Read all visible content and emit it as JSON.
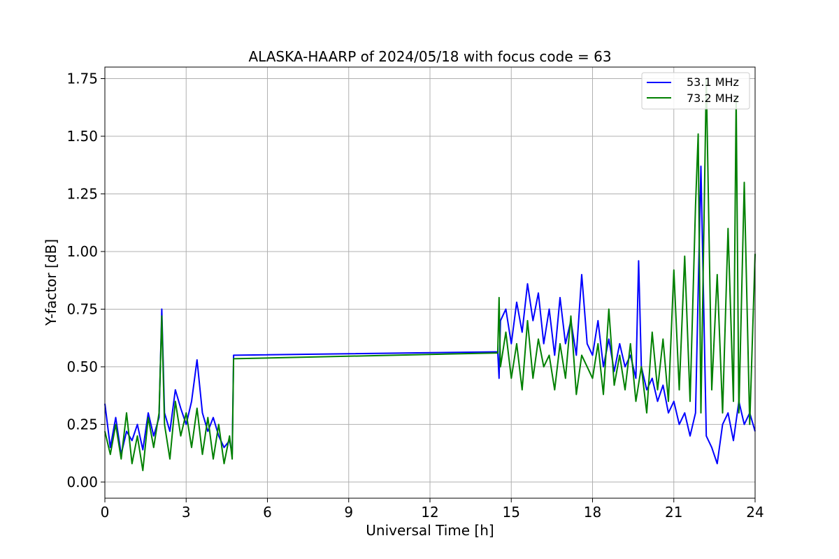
{
  "chart_data": {
    "type": "line",
    "title": "ALASKA-HAARP of 2024/05/18 with focus code = 63",
    "xlabel": "Universal Time [h]",
    "ylabel": "Y-factor [dB]",
    "xlim": [
      0,
      24
    ],
    "ylim": [
      -0.07,
      1.8
    ],
    "xticks": [
      0,
      3,
      6,
      9,
      12,
      15,
      18,
      21,
      24
    ],
    "xtick_labels": [
      "0",
      "3",
      "6",
      "9",
      "12",
      "15",
      "18",
      "21",
      "24"
    ],
    "yticks": [
      0.0,
      0.25,
      0.5,
      0.75,
      1.0,
      1.25,
      1.5,
      1.75
    ],
    "ytick_labels": [
      "0.00",
      "0.25",
      "0.50",
      "0.75",
      "1.00",
      "1.25",
      "1.50",
      "1.75"
    ],
    "grid": true,
    "legend_position": "top-right",
    "series": [
      {
        "name": "53.1 MHz",
        "color": "#0000ff",
        "x": [
          0.0,
          0.2,
          0.4,
          0.6,
          0.8,
          1.0,
          1.2,
          1.4,
          1.6,
          1.8,
          2.0,
          2.1,
          2.2,
          2.4,
          2.6,
          2.8,
          3.0,
          3.2,
          3.4,
          3.6,
          3.8,
          4.0,
          4.2,
          4.4,
          4.6,
          4.7,
          4.75,
          14.5,
          14.55,
          14.6,
          14.8,
          15.0,
          15.2,
          15.4,
          15.6,
          15.8,
          16.0,
          16.2,
          16.4,
          16.6,
          16.8,
          17.0,
          17.2,
          17.4,
          17.6,
          17.8,
          18.0,
          18.2,
          18.4,
          18.6,
          18.8,
          19.0,
          19.2,
          19.4,
          19.6,
          19.7,
          19.8,
          20.0,
          20.2,
          20.4,
          20.6,
          20.8,
          21.0,
          21.2,
          21.4,
          21.6,
          21.8,
          22.0,
          22.2,
          22.4,
          22.6,
          22.8,
          23.0,
          23.2,
          23.4,
          23.6,
          23.8,
          24.0
        ],
        "y": [
          0.34,
          0.15,
          0.28,
          0.12,
          0.22,
          0.18,
          0.25,
          0.14,
          0.3,
          0.2,
          0.28,
          0.75,
          0.3,
          0.22,
          0.4,
          0.32,
          0.25,
          0.35,
          0.53,
          0.3,
          0.22,
          0.28,
          0.2,
          0.15,
          0.18,
          0.12,
          0.55,
          0.565,
          0.45,
          0.7,
          0.75,
          0.6,
          0.78,
          0.65,
          0.86,
          0.7,
          0.82,
          0.6,
          0.75,
          0.55,
          0.8,
          0.6,
          0.7,
          0.55,
          0.9,
          0.6,
          0.55,
          0.7,
          0.5,
          0.62,
          0.48,
          0.6,
          0.5,
          0.55,
          0.45,
          0.96,
          0.5,
          0.4,
          0.45,
          0.35,
          0.42,
          0.3,
          0.35,
          0.25,
          0.3,
          0.2,
          0.3,
          1.37,
          0.2,
          0.15,
          0.08,
          0.25,
          0.3,
          0.18,
          0.35,
          0.25,
          0.3,
          0.22
        ]
      },
      {
        "name": "73.2 MHz",
        "color": "#008000",
        "x": [
          0.0,
          0.2,
          0.4,
          0.6,
          0.8,
          1.0,
          1.2,
          1.4,
          1.6,
          1.8,
          2.0,
          2.1,
          2.2,
          2.4,
          2.6,
          2.8,
          3.0,
          3.2,
          3.4,
          3.6,
          3.8,
          4.0,
          4.2,
          4.4,
          4.6,
          4.7,
          4.75,
          14.5,
          14.55,
          14.6,
          14.8,
          15.0,
          15.2,
          15.4,
          15.6,
          15.8,
          16.0,
          16.2,
          16.4,
          16.6,
          16.8,
          17.0,
          17.2,
          17.4,
          17.6,
          17.8,
          18.0,
          18.2,
          18.4,
          18.6,
          18.8,
          19.0,
          19.2,
          19.4,
          19.6,
          19.8,
          20.0,
          20.2,
          20.4,
          20.6,
          20.8,
          21.0,
          21.2,
          21.4,
          21.6,
          21.8,
          21.9,
          22.0,
          22.2,
          22.4,
          22.6,
          22.8,
          23.0,
          23.2,
          23.3,
          23.4,
          23.6,
          23.8,
          24.0
        ],
        "y": [
          0.22,
          0.12,
          0.25,
          0.1,
          0.3,
          0.08,
          0.2,
          0.05,
          0.28,
          0.15,
          0.3,
          0.72,
          0.25,
          0.1,
          0.35,
          0.2,
          0.3,
          0.15,
          0.32,
          0.12,
          0.28,
          0.1,
          0.25,
          0.08,
          0.2,
          0.1,
          0.535,
          0.56,
          0.8,
          0.5,
          0.65,
          0.45,
          0.6,
          0.4,
          0.7,
          0.45,
          0.62,
          0.5,
          0.55,
          0.4,
          0.6,
          0.45,
          0.72,
          0.38,
          0.55,
          0.5,
          0.45,
          0.6,
          0.38,
          0.75,
          0.42,
          0.55,
          0.4,
          0.6,
          0.35,
          0.5,
          0.3,
          0.65,
          0.4,
          0.62,
          0.35,
          0.92,
          0.4,
          0.98,
          0.35,
          1.2,
          1.51,
          0.3,
          1.75,
          0.4,
          0.9,
          0.3,
          1.1,
          0.35,
          1.67,
          0.3,
          1.3,
          0.25,
          0.99
        ]
      }
    ]
  }
}
